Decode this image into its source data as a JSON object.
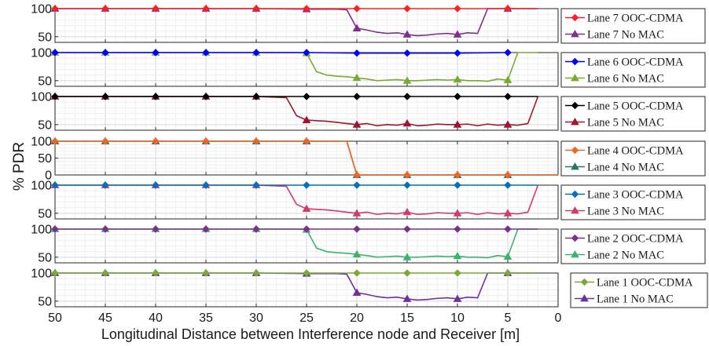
{
  "chart_data": {
    "type": "line",
    "xlabel": "Longitudinal Distance between Interference node and Receiver [m]",
    "ylabel": "% PDR",
    "xlim": [
      50,
      0
    ],
    "x_reversed": true,
    "x_ticks": [
      "50",
      "45",
      "40",
      "35",
      "30",
      "25",
      "20",
      "15",
      "10",
      "5",
      "0"
    ],
    "grid": true,
    "panels": [
      {
        "lane": 7,
        "ylim": [
          40,
          100
        ],
        "y_ticks": [
          "100",
          "50"
        ],
        "series": [
          {
            "name": "Lane 7 OOC-CDMA",
            "color": "#ff2020",
            "marker": "diamond",
            "x": [
              50,
              45,
              40,
              35,
              30,
              25,
              20,
              15,
              10,
              5,
              2
            ],
            "y": [
              100,
              100,
              100,
              100,
              100,
              100,
              100,
              100,
              100,
              100,
              100
            ]
          },
          {
            "name": "Lane 7 No MAC",
            "color": "#7e2f8e",
            "marker": "triangle",
            "x": [
              50,
              45,
              40,
              35,
              30,
              25,
              22,
              21,
              20,
              19,
              18,
              17,
              16,
              15,
              14,
              13,
              12,
              11,
              10,
              9,
              8,
              7,
              6,
              5,
              2
            ],
            "y": [
              100,
              100,
              100,
              100,
              100,
              99,
              99,
              98,
              65,
              62,
              58,
              56,
              57,
              54,
              52,
              53,
              55,
              56,
              54,
              57,
              56,
              100,
              100,
              100,
              100
            ]
          }
        ]
      },
      {
        "lane": 6,
        "ylim": [
          40,
          100
        ],
        "y_ticks": [
          "100",
          "50"
        ],
        "series": [
          {
            "name": "Lane 6 OOC-CDMA",
            "color": "#0000ff",
            "marker": "diamond",
            "x": [
              50,
              45,
              40,
              35,
              30,
              25,
              20,
              15,
              10,
              5
            ],
            "y": [
              100,
              100,
              100,
              100,
              100,
              100,
              99,
              99,
              99,
              100
            ]
          },
          {
            "name": "Lane 6 No MAC",
            "color": "#77ac30",
            "marker": "triangle",
            "x": [
              50,
              45,
              40,
              35,
              30,
              26,
              25,
              24,
              23,
              22,
              21,
              20,
              19,
              18,
              17,
              16,
              15,
              14,
              13,
              12,
              11,
              10,
              9,
              8,
              7,
              6,
              5,
              4,
              2
            ],
            "y": [
              100,
              100,
              100,
              100,
              100,
              100,
              99,
              66,
              60,
              58,
              57,
              55,
              53,
              50,
              51,
              52,
              50,
              50,
              51,
              52,
              51,
              52,
              50,
              50,
              49,
              53,
              51,
              100,
              100
            ]
          }
        ]
      },
      {
        "lane": 5,
        "ylim": [
          40,
          100
        ],
        "y_ticks": [
          "100",
          "50"
        ],
        "series": [
          {
            "name": "Lane 5 OOC-CDMA",
            "color": "#000000",
            "marker": "diamond",
            "x": [
              50,
              45,
              40,
              35,
              30,
              25,
              20,
              15,
              10,
              5,
              2
            ],
            "y": [
              100,
              100,
              100,
              100,
              100,
              100,
              100,
              100,
              100,
              100,
              100
            ]
          },
          {
            "name": "Lane 5 No MAC",
            "color": "#a2142f",
            "marker": "triangle",
            "x": [
              50,
              45,
              40,
              35,
              30,
              27,
              26,
              25,
              24,
              23,
              22,
              21,
              20,
              19,
              18,
              17,
              16,
              15,
              14,
              13,
              12,
              11,
              10,
              9,
              8,
              7,
              6,
              5,
              4,
              3,
              2
            ],
            "y": [
              100,
              100,
              100,
              100,
              100,
              98,
              66,
              58,
              57,
              56,
              54,
              52,
              50,
              52,
              48,
              50,
              49,
              52,
              48,
              49,
              51,
              50,
              50,
              51,
              48,
              51,
              49,
              50,
              49,
              52,
              100
            ]
          }
        ]
      },
      {
        "lane": 4,
        "ylim": [
          0,
          100
        ],
        "y_ticks": [
          "100",
          "50",
          "0"
        ],
        "series": [
          {
            "name": "Lane 4 OOC-CDMA",
            "color": "#f26522",
            "marker": "diamond",
            "x": [
              50,
              45,
              40,
              35,
              30,
              25,
              21,
              20,
              15,
              10,
              5,
              0
            ],
            "y": [
              100,
              100,
              100,
              100,
              100,
              100,
              100,
              0,
              0,
              0,
              0,
              0
            ]
          },
          {
            "name": "Lane 4 No MAC",
            "color": "#2a7565",
            "marker": "triangle",
            "x": [
              50,
              45,
              40,
              35,
              30,
              25,
              21,
              20,
              15,
              10,
              5,
              0
            ],
            "y": [
              100,
              100,
              100,
              100,
              100,
              100,
              100,
              0,
              0,
              0,
              0,
              0
            ]
          }
        ]
      },
      {
        "lane": 3,
        "ylim": [
          40,
          100
        ],
        "y_ticks": [
          "100",
          "50"
        ],
        "series": [
          {
            "name": "Lane 3 OOC-CDMA",
            "color": "#0072bd",
            "marker": "diamond",
            "x": [
              50,
              45,
              40,
              35,
              30,
              25,
              20,
              15,
              10,
              5,
              2
            ],
            "y": [
              100,
              100,
              100,
              100,
              100,
              100,
              100,
              100,
              100,
              100,
              100
            ]
          },
          {
            "name": "Lane 3 No MAC",
            "color": "#d23a6b",
            "marker": "triangle",
            "x": [
              50,
              45,
              40,
              35,
              30,
              27,
              26,
              25,
              24,
              23,
              22,
              21,
              20,
              19,
              18,
              17,
              16,
              15,
              14,
              13,
              12,
              11,
              10,
              9,
              8,
              7,
              6,
              5,
              4,
              3,
              2
            ],
            "y": [
              100,
              100,
              100,
              100,
              100,
              98,
              66,
              58,
              57,
              56,
              54,
              52,
              50,
              52,
              48,
              50,
              49,
              52,
              48,
              49,
              51,
              50,
              50,
              51,
              48,
              51,
              49,
              50,
              49,
              52,
              100
            ]
          }
        ]
      },
      {
        "lane": 2,
        "ylim": [
          40,
          100
        ],
        "y_ticks": [
          "100",
          "50"
        ],
        "series": [
          {
            "name": "Lane 2 OOC-CDMA",
            "color": "#7e2f8e",
            "marker": "diamond",
            "x": [
              50,
              45,
              40,
              35,
              30,
              25,
              20,
              15,
              10,
              5,
              2
            ],
            "y": [
              100,
              100,
              100,
              100,
              100,
              100,
              100,
              100,
              100,
              100,
              100
            ]
          },
          {
            "name": "Lane 2 No MAC",
            "color": "#3cb371",
            "marker": "triangle",
            "x": [
              50,
              45,
              40,
              35,
              30,
              26,
              25,
              24,
              23,
              22,
              21,
              20,
              19,
              18,
              17,
              16,
              15,
              14,
              13,
              12,
              11,
              10,
              9,
              8,
              7,
              6,
              5,
              4,
              2
            ],
            "y": [
              100,
              100,
              100,
              100,
              100,
              100,
              99,
              66,
              60,
              58,
              57,
              55,
              53,
              50,
              51,
              52,
              50,
              50,
              51,
              52,
              51,
              52,
              50,
              50,
              49,
              53,
              51,
              100,
              100
            ]
          }
        ]
      },
      {
        "lane": 1,
        "ylim": [
          40,
          100
        ],
        "y_ticks": [
          "100",
          "50"
        ],
        "series": [
          {
            "name": "Lane 1 OOC-CDMA",
            "color": "#77ac30",
            "marker": "diamond",
            "x": [
              50,
              45,
              40,
              35,
              30,
              25,
              20,
              15,
              10,
              5,
              2
            ],
            "y": [
              100,
              100,
              100,
              100,
              100,
              100,
              100,
              100,
              100,
              100,
              100
            ]
          },
          {
            "name": "Lane 1 No MAC",
            "color": "#7030a0",
            "marker": "triangle",
            "x": [
              50,
              45,
              40,
              35,
              30,
              25,
              22,
              21,
              20,
              19,
              18,
              17,
              16,
              15,
              14,
              13,
              12,
              11,
              10,
              9,
              8,
              7,
              6,
              5,
              2
            ],
            "y": [
              100,
              100,
              100,
              100,
              100,
              99,
              99,
              98,
              65,
              62,
              58,
              56,
              57,
              54,
              52,
              53,
              55,
              56,
              54,
              57,
              56,
              100,
              100,
              100,
              100
            ]
          }
        ]
      }
    ]
  }
}
